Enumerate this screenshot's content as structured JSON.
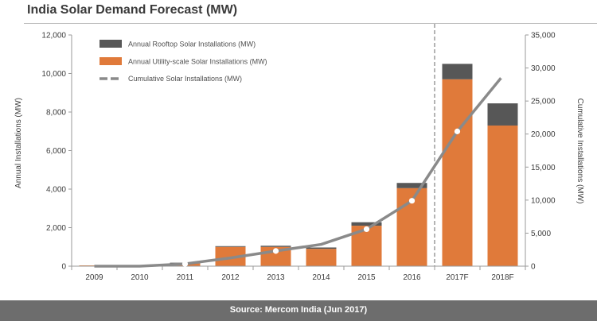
{
  "colors": {
    "utility": "#e07a3a",
    "rooftop": "#575757",
    "cumulative_line": "#8a8a8a",
    "marker_fill": "#ffffff",
    "footer_bg": "#6d6d6d"
  },
  "chart_data": {
    "type": "bar",
    "title": "India Solar Demand Forecast (MW)",
    "source": "Source: Mercom India (Jun 2017)",
    "categories": [
      "2009",
      "2010",
      "2011",
      "2012",
      "2013",
      "2014",
      "2015",
      "2016",
      "2017F",
      "2018F"
    ],
    "series": [
      {
        "name": "Annual Rooftop Solar Installations (MW)",
        "axis": "left",
        "stack": "top",
        "values": [
          0,
          0,
          40,
          40,
          60,
          70,
          180,
          270,
          800,
          1150
        ]
      },
      {
        "name": "Annual Utility-scale Solar Installations (MW)",
        "axis": "left",
        "stack": "bottom",
        "values": [
          40,
          20,
          140,
          1000,
          1000,
          900,
          2100,
          4050,
          9700,
          7300
        ]
      },
      {
        "name": "Cumulative Solar Installations (MW)",
        "axis": "right",
        "type": "line",
        "values": [
          0,
          0,
          350,
          1250,
          2300,
          3300,
          5600,
          9900,
          20400,
          28800
        ]
      }
    ],
    "ylabel": "Annual Installations (MW)",
    "y2label": "Cumulative Installations (MW)",
    "ylim": [
      0,
      12000
    ],
    "y2lim": [
      0,
      35000
    ],
    "yticks": [
      "0",
      "2,000",
      "4,000",
      "6,000",
      "8,000",
      "10,000",
      "12,000"
    ],
    "y2ticks": [
      "0",
      "5,000",
      "10,000",
      "15,000",
      "20,000",
      "25,000",
      "30,000",
      "35,000"
    ],
    "forecast_divider_after": "2016",
    "grid": false,
    "legend_position": "top-left"
  }
}
